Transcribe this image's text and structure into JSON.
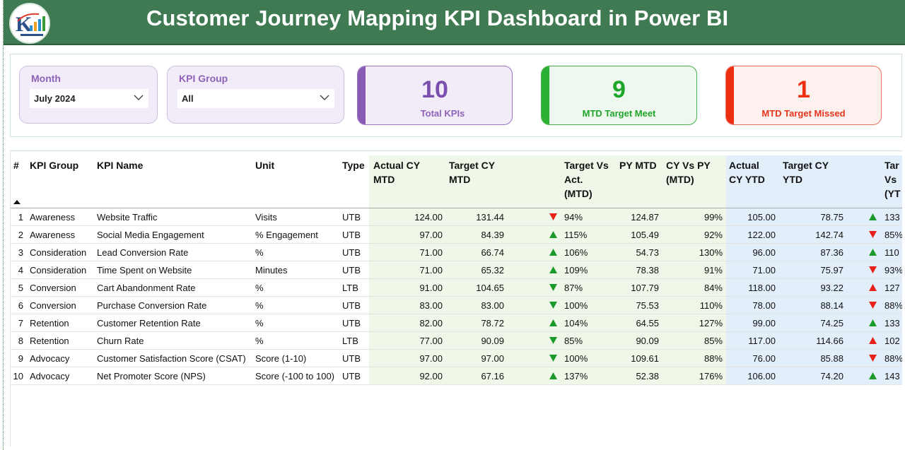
{
  "header": {
    "title": "Customer Journey Mapping KPI Dashboard in Power BI",
    "brand_color": "#3f7a52"
  },
  "filters": {
    "month": {
      "label": "Month",
      "value": "July 2024"
    },
    "kpi_group": {
      "label": "KPI Group",
      "value": "All"
    }
  },
  "cards": {
    "total": {
      "value": "10",
      "label": "Total KPIs",
      "color": "#8a5bb5"
    },
    "meet": {
      "value": "9",
      "label": "MTD Target Meet",
      "color": "#2ab032"
    },
    "missed": {
      "value": "1",
      "label": "MTD Target Missed",
      "color": "#ee2e10"
    }
  },
  "table": {
    "headers": {
      "num": "#",
      "group": "KPI Group",
      "name": "KPI Name",
      "unit": "Unit",
      "type": "Type",
      "actual_mtd_1": "Actual CY",
      "actual_mtd_2": "MTD",
      "target_mtd_1": "Target CY",
      "target_mtd_2": "MTD",
      "tva_mtd_1": "Target Vs",
      "tva_mtd_2": "Act.",
      "tva_mtd_3": "(MTD)",
      "py_mtd": "PY MTD",
      "cyvspy_1": "CY Vs PY",
      "cyvspy_2": "(MTD)",
      "actual_ytd_1": "Actual",
      "actual_ytd_2": "CY YTD",
      "target_ytd_1": "Target CY",
      "target_ytd_2": "YTD",
      "tva_ytd_1": "Tar",
      "tva_ytd_2": "Vs",
      "tva_ytd_3": "(YT"
    },
    "status_colors": {
      "up": "#1a9a2a",
      "down": "#e8201a"
    },
    "rows": [
      {
        "num": "1",
        "group": "Awareness",
        "name": "Website Traffic",
        "unit": "Visits",
        "type": "UTB",
        "actual_mtd": "124.00",
        "target_mtd": "131.44",
        "mtd_status": "down",
        "mtd_pct": "94%",
        "py_mtd": "124.87",
        "cy_vs_py": "99%",
        "actual_ytd": "105.00",
        "target_ytd": "78.75",
        "ytd_status": "up",
        "ytd_pct": "133"
      },
      {
        "num": "2",
        "group": "Awareness",
        "name": "Social Media Engagement",
        "unit": "% Engagement",
        "type": "UTB",
        "actual_mtd": "97.00",
        "target_mtd": "84.39",
        "mtd_status": "up",
        "mtd_pct": "115%",
        "py_mtd": "105.49",
        "cy_vs_py": "92%",
        "actual_ytd": "122.00",
        "target_ytd": "142.74",
        "ytd_status": "down",
        "ytd_pct": "85%"
      },
      {
        "num": "3",
        "group": "Consideration",
        "name": "Lead Conversion Rate",
        "unit": "%",
        "type": "UTB",
        "actual_mtd": "71.00",
        "target_mtd": "66.74",
        "mtd_status": "up",
        "mtd_pct": "106%",
        "py_mtd": "54.73",
        "cy_vs_py": "130%",
        "actual_ytd": "96.00",
        "target_ytd": "87.36",
        "ytd_status": "up",
        "ytd_pct": "110"
      },
      {
        "num": "4",
        "group": "Consideration",
        "name": "Time Spent on Website",
        "unit": "Minutes",
        "type": "UTB",
        "actual_mtd": "71.00",
        "target_mtd": "65.32",
        "mtd_status": "up",
        "mtd_pct": "109%",
        "py_mtd": "78.38",
        "cy_vs_py": "91%",
        "actual_ytd": "71.00",
        "target_ytd": "75.97",
        "ytd_status": "down",
        "ytd_pct": "93%"
      },
      {
        "num": "5",
        "group": "Conversion",
        "name": "Cart Abandonment Rate",
        "unit": "%",
        "type": "LTB",
        "actual_mtd": "91.00",
        "target_mtd": "104.65",
        "mtd_status": "down-green",
        "mtd_pct": "87%",
        "py_mtd": "107.79",
        "cy_vs_py": "84%",
        "actual_ytd": "118.00",
        "target_ytd": "93.22",
        "ytd_status": "up-red",
        "ytd_pct": "127"
      },
      {
        "num": "6",
        "group": "Conversion",
        "name": "Purchase Conversion Rate",
        "unit": "%",
        "type": "UTB",
        "actual_mtd": "83.00",
        "target_mtd": "83.00",
        "mtd_status": "down-green",
        "mtd_pct": "100%",
        "py_mtd": "75.53",
        "cy_vs_py": "110%",
        "actual_ytd": "78.00",
        "target_ytd": "88.14",
        "ytd_status": "down",
        "ytd_pct": "88%"
      },
      {
        "num": "7",
        "group": "Retention",
        "name": "Customer Retention Rate",
        "unit": "%",
        "type": "UTB",
        "actual_mtd": "82.00",
        "target_mtd": "78.72",
        "mtd_status": "up",
        "mtd_pct": "104%",
        "py_mtd": "64.55",
        "cy_vs_py": "127%",
        "actual_ytd": "99.00",
        "target_ytd": "74.25",
        "ytd_status": "up",
        "ytd_pct": "133"
      },
      {
        "num": "8",
        "group": "Retention",
        "name": "Churn Rate",
        "unit": "%",
        "type": "LTB",
        "actual_mtd": "77.00",
        "target_mtd": "90.09",
        "mtd_status": "down-green",
        "mtd_pct": "85%",
        "py_mtd": "90.09",
        "cy_vs_py": "85%",
        "actual_ytd": "117.00",
        "target_ytd": "114.66",
        "ytd_status": "up-red",
        "ytd_pct": "102"
      },
      {
        "num": "9",
        "group": "Advocacy",
        "name": "Customer Satisfaction Score (CSAT)",
        "unit": "Score (1-10)",
        "type": "UTB",
        "actual_mtd": "97.00",
        "target_mtd": "97.00",
        "mtd_status": "down-green",
        "mtd_pct": "100%",
        "py_mtd": "109.61",
        "cy_vs_py": "88%",
        "actual_ytd": "76.00",
        "target_ytd": "85.88",
        "ytd_status": "down",
        "ytd_pct": "88%"
      },
      {
        "num": "10",
        "group": "Advocacy",
        "name": "Net Promoter Score (NPS)",
        "unit": "Score (-100 to 100)",
        "type": "UTB",
        "actual_mtd": "92.00",
        "target_mtd": "67.16",
        "mtd_status": "up",
        "mtd_pct": "137%",
        "py_mtd": "52.38",
        "cy_vs_py": "176%",
        "actual_ytd": "106.00",
        "target_ytd": "74.20",
        "ytd_status": "up",
        "ytd_pct": "143"
      }
    ]
  }
}
